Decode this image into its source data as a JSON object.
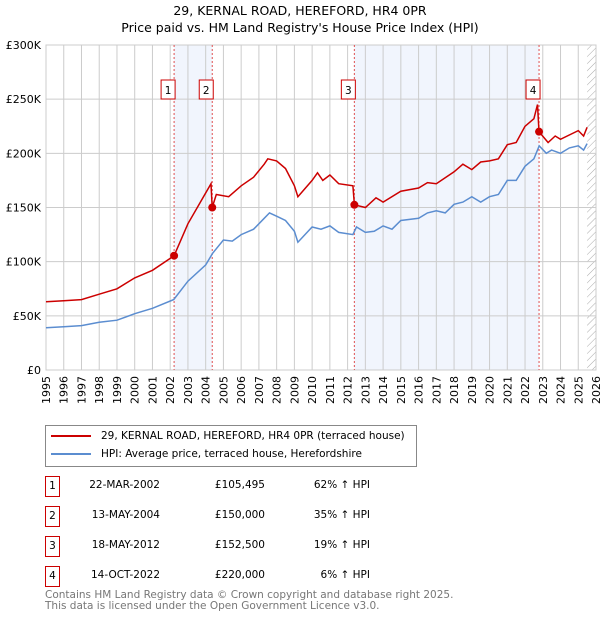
{
  "chart_data": {
    "type": "line",
    "title": "29, KERNAL ROAD, HEREFORD, HR4 0PR",
    "subtitle": "Price paid vs. HM Land Registry's House Price Index (HPI)",
    "xlim": [
      1995,
      2026
    ],
    "ylim": [
      0,
      300000
    ],
    "xticks": [
      "1995",
      "1996",
      "1997",
      "1998",
      "1999",
      "2000",
      "2001",
      "2002",
      "2003",
      "2004",
      "2005",
      "2006",
      "2007",
      "2008",
      "2009",
      "2010",
      "2011",
      "2012",
      "2013",
      "2014",
      "2015",
      "2016",
      "2017",
      "2018",
      "2019",
      "2020",
      "2021",
      "2022",
      "2023",
      "2024",
      "2025",
      "2026"
    ],
    "yticks": [
      {
        "v": 0,
        "label": "£0"
      },
      {
        "v": 50000,
        "label": "£50K"
      },
      {
        "v": 100000,
        "label": "£100K"
      },
      {
        "v": 150000,
        "label": "£150K"
      },
      {
        "v": 200000,
        "label": "£200K"
      },
      {
        "v": 250000,
        "label": "£250K"
      },
      {
        "v": 300000,
        "label": "£300K"
      }
    ],
    "series": [
      {
        "name": "29, KERNAL ROAD, HEREFORD, HR4 0PR (terraced house)",
        "color": "#cc0000",
        "x": [
          1995,
          1996,
          1997,
          1998,
          1999,
          2000,
          2001,
          2002.22,
          2003,
          2003.7,
          2004.3,
          2004.37,
          2004.6,
          2005.3,
          2006,
          2006.7,
          2007.3,
          2007.5,
          2008,
          2008.5,
          2009,
          2009.2,
          2010,
          2010.3,
          2010.6,
          2011,
          2011.5,
          2012.3,
          2012.38,
          2013,
          2013.6,
          2014,
          2015,
          2016,
          2016.5,
          2017,
          2018,
          2018.5,
          2019,
          2019.5,
          2020,
          2020.5,
          2021,
          2021.5,
          2022,
          2022.5,
          2022.7,
          2022.79,
          2023.3,
          2023.7,
          2024,
          2025,
          2025.3,
          2025.5
        ],
        "y": [
          63000,
          64000,
          65000,
          70000,
          75000,
          85000,
          92000,
          105495,
          135000,
          155000,
          172000,
          150000,
          162000,
          160000,
          170000,
          178000,
          190000,
          195000,
          193000,
          186000,
          170000,
          160000,
          175000,
          182000,
          175000,
          180000,
          172000,
          170000,
          152500,
          150000,
          159000,
          155000,
          165000,
          168000,
          173000,
          172000,
          183000,
          190000,
          185000,
          192000,
          193000,
          195000,
          208000,
          210000,
          225000,
          232000,
          245000,
          220000,
          210000,
          216000,
          213000,
          221000,
          216000,
          224000
        ]
      },
      {
        "name": "HPI: Average price, terraced house, Herefordshire",
        "color": "#5b8dd0",
        "x": [
          1995,
          1996,
          1997,
          1998,
          1999,
          2000,
          2001,
          2002.2,
          2003,
          2004,
          2004.4,
          2005,
          2005.5,
          2006,
          2006.7,
          2007.3,
          2007.6,
          2008,
          2008.5,
          2009,
          2009.2,
          2010,
          2010.5,
          2011,
          2011.5,
          2012.3,
          2012.5,
          2013,
          2013.5,
          2014,
          2014.5,
          2015,
          2016,
          2016.5,
          2017,
          2017.5,
          2018,
          2018.5,
          2019,
          2019.5,
          2020,
          2020.5,
          2021,
          2021.5,
          2022,
          2022.5,
          2022.8,
          2023.2,
          2023.5,
          2024,
          2024.5,
          2025,
          2025.3,
          2025.5
        ],
        "y": [
          39000,
          40000,
          41000,
          44000,
          46000,
          52000,
          57000,
          65000,
          82000,
          97000,
          108000,
          120000,
          119000,
          125000,
          130000,
          140000,
          145000,
          142000,
          138000,
          128000,
          118000,
          132000,
          130000,
          133000,
          127000,
          125000,
          132000,
          127000,
          128000,
          133000,
          130000,
          138000,
          140000,
          145000,
          147000,
          145000,
          153000,
          155000,
          160000,
          155000,
          160000,
          162000,
          175000,
          175000,
          188000,
          195000,
          207000,
          200000,
          203000,
          200000,
          205000,
          207000,
          203000,
          209000
        ]
      }
    ],
    "sales": [
      {
        "n": "1",
        "x": 2002.22,
        "y": 105495
      },
      {
        "n": "2",
        "x": 2004.37,
        "y": 150000
      },
      {
        "n": "3",
        "x": 2012.38,
        "y": 152500
      },
      {
        "n": "4",
        "x": 2022.79,
        "y": 220000
      }
    ],
    "shaded": [
      [
        2002.22,
        2004.37
      ],
      [
        2012.38,
        2022.79
      ]
    ],
    "hatched_from": 2025.5
  },
  "legend": {
    "property": "29, KERNAL ROAD, HEREFORD, HR4 0PR (terraced house)",
    "hpi": "HPI: Average price, terraced house, Herefordshire"
  },
  "transactions": [
    {
      "n": "1",
      "date": "22-MAR-2002",
      "price": "£105,495",
      "hpi": "62% ↑ HPI"
    },
    {
      "n": "2",
      "date": "13-MAY-2004",
      "price": "£150,000",
      "hpi": "35% ↑ HPI"
    },
    {
      "n": "3",
      "date": "18-MAY-2012",
      "price": "£152,500",
      "hpi": "19% ↑ HPI"
    },
    {
      "n": "4",
      "date": "14-OCT-2022",
      "price": "£220,000",
      "hpi": "6% ↑ HPI"
    }
  ],
  "footer": {
    "line1": "Contains HM Land Registry data © Crown copyright and database right 2025.",
    "line2": "This data is licensed under the Open Government Licence v3.0."
  }
}
